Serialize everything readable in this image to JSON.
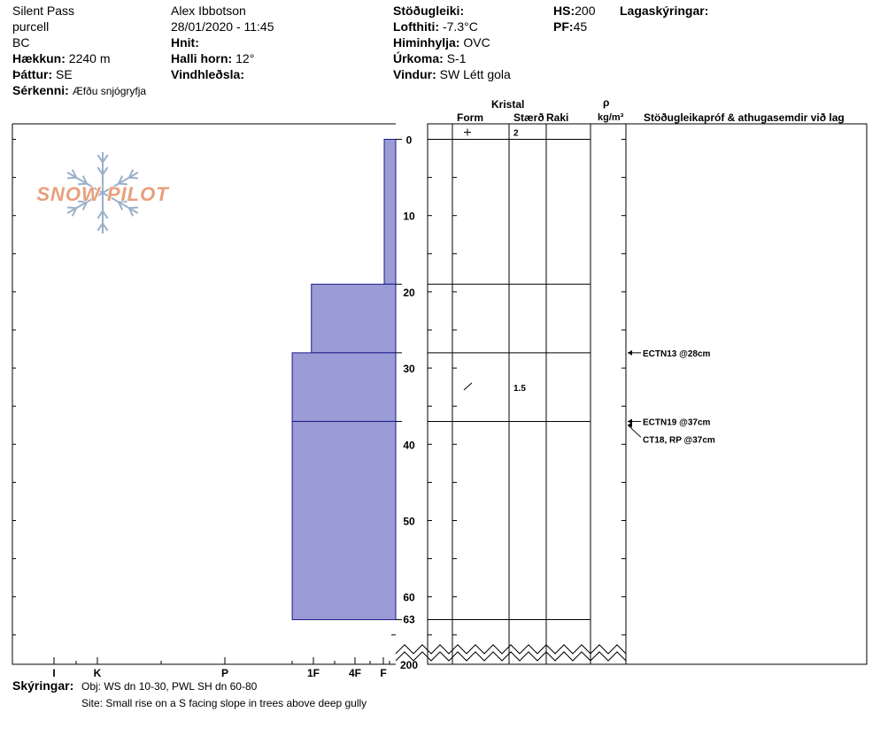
{
  "header": {
    "location": "Silent Pass",
    "range": "purcell",
    "state": "BC",
    "elevation_label": "Hækkun:",
    "elevation_value": "2240 m",
    "aspect_label": "Þáttur:",
    "aspect_value": "SE",
    "features_label": "Sérkenni:",
    "features_value": "Æfðu snjógryfja",
    "observer": "Alex Ibbotson",
    "datetime": "28/01/2020 - 11:45",
    "coords_label": "Hnit:",
    "slope_label": "Halli horn:",
    "slope_value": "12°",
    "wind_loading_label": "Vindhleðsla:",
    "stability_label": "Stöðugleiki:",
    "air_temp_label": "Lofthiti:",
    "air_temp_value": "-7.3°C",
    "sky_label": "Himinhylja:",
    "sky_value": "OVC",
    "precip_label": "Úrkoma:",
    "precip_value": "S-1",
    "wind_label": "Vindur:",
    "wind_value": "SW Létt gola",
    "hs_label": "HS:",
    "hs_value": "200",
    "pf_label": "PF:",
    "pf_value": "45",
    "layer_notes_label": "Lagaskýringar:"
  },
  "columns": {
    "crystal": "Kristal",
    "form": "Form",
    "size": "Stærð",
    "moisture": "Raki",
    "rho": "ρ",
    "density_unit": "kg/m³",
    "tests": "Stöðugleikapróf & athugasemdir við lag"
  },
  "logo_text": "SNOW PILOT",
  "hardness_scale": [
    "I",
    "K",
    "P",
    "1F",
    "4F",
    "F"
  ],
  "depth_ticks": [
    "0",
    "10",
    "20",
    "30",
    "40",
    "50",
    "60",
    "63",
    "200"
  ],
  "layers": [
    {
      "top": 0,
      "bottom": 19,
      "hardness": 0.03,
      "form": "+",
      "size": "2"
    },
    {
      "top": 19,
      "bottom": 28,
      "hardness": 0.22,
      "form": "",
      "size": ""
    },
    {
      "top": 28,
      "bottom": 37,
      "hardness": 0.27,
      "form": "/",
      "size": "1.5"
    },
    {
      "top": 37,
      "bottom": 63,
      "hardness": 0.27,
      "form": "",
      "size": ""
    }
  ],
  "tests": [
    {
      "text": "ECTN13 @28cm",
      "depth": 28
    },
    {
      "text": "ECTN19 @37cm",
      "depth": 37
    },
    {
      "text": "CT18, RP @37cm",
      "depth": 37
    }
  ],
  "notes": {
    "label": "Skýringar:",
    "line1": "Obj: WS dn 10-30, PWL SH dn 60-80",
    "line2": "Site: Small rise on a S facing slope in trees above deep gully"
  },
  "colors": {
    "layer_fill": "#9b9bd6",
    "layer_stroke": "#1a1a8c",
    "logo_orange": "#e8a07a",
    "logo_blue": "#9ab0c8"
  }
}
